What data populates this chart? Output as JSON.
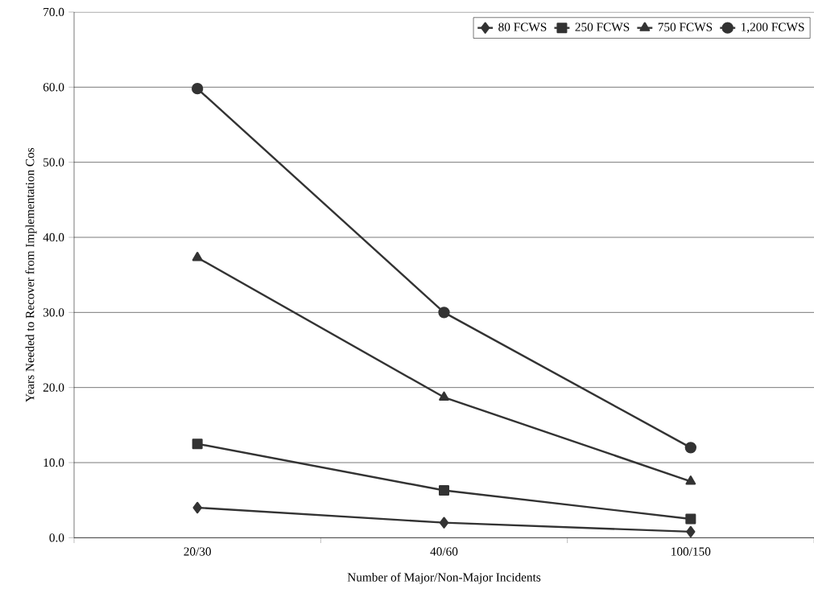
{
  "chart_data": {
    "type": "line",
    "xlabel": "Number of Major/Non-Major Incidents",
    "ylabel": "Years Needed to Recover from Implementation Cos",
    "categories": [
      "20/30",
      "40/60",
      "100/150"
    ],
    "series": [
      {
        "name": "80 FCWS",
        "color": "#333333",
        "marker": "diamond",
        "values": [
          4.0,
          2.0,
          0.8
        ]
      },
      {
        "name": "250 FCWS",
        "color": "#333333",
        "marker": "square",
        "values": [
          12.5,
          6.3,
          2.5
        ]
      },
      {
        "name": "750 FCWS",
        "color": "#333333",
        "marker": "triangle",
        "values": [
          37.3,
          18.7,
          7.5
        ]
      },
      {
        "name": "1,200 FCWS",
        "color": "#333333",
        "marker": "circle",
        "values": [
          59.8,
          30.0,
          12.0
        ]
      }
    ],
    "ylim": [
      0,
      70
    ],
    "yticks": [
      {
        "value": 0,
        "label": "0.0"
      },
      {
        "value": 10,
        "label": "10.0"
      },
      {
        "value": 20,
        "label": "20.0"
      },
      {
        "value": 30,
        "label": "30.0"
      },
      {
        "value": 40,
        "label": "40.0"
      },
      {
        "value": 50,
        "label": "50.0"
      },
      {
        "value": 60,
        "label": "60.0"
      },
      {
        "value": 70,
        "label": "70.0"
      }
    ],
    "grid": "y",
    "legend": "top right",
    "line_style": "solid"
  }
}
